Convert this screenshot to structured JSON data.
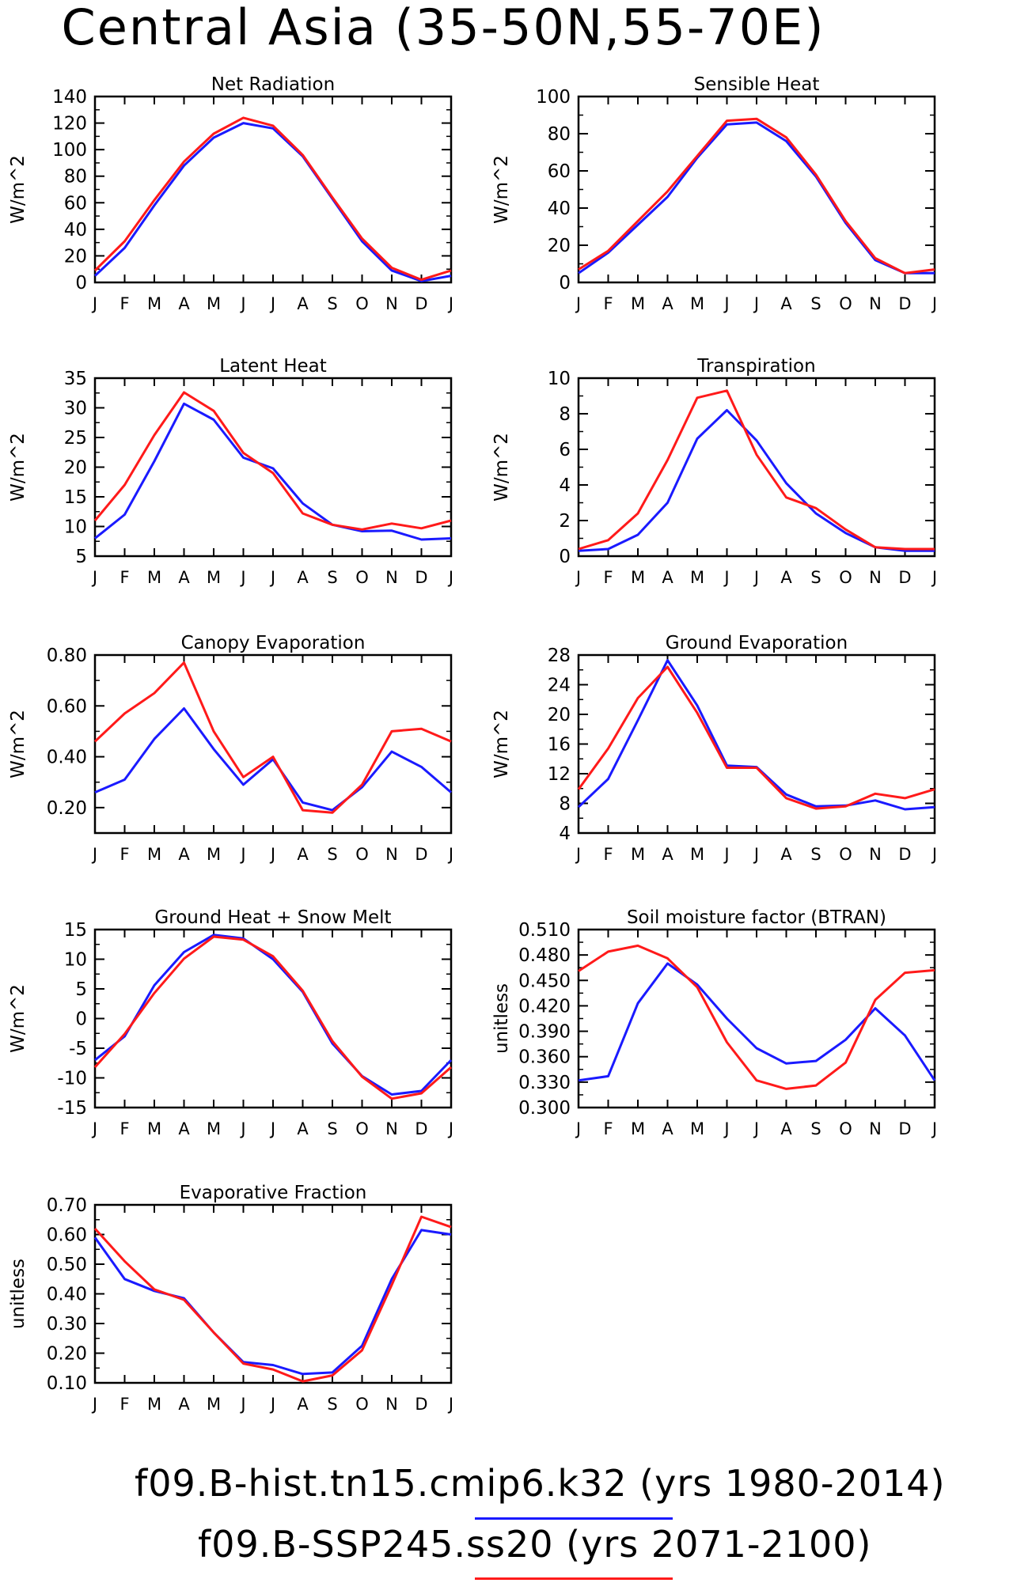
{
  "title": "Central Asia (35-50N,55-70E)",
  "colors": {
    "run1": "#1a1aff",
    "run2": "#ff1a1a"
  },
  "legend": [
    {
      "label": "f09.B-hist.tn15.cmip6.k32 (yrs 1980-2014)",
      "color": "#1a1aff"
    },
    {
      "label": "f09.B-SSP245.ss20 (yrs 2071-2100)",
      "color": "#ff1a1a"
    }
  ],
  "chart_data": [
    {
      "type": "line",
      "title": "Net Radiation",
      "ylabel": "W/m^2",
      "categories": [
        "J",
        "F",
        "M",
        "A",
        "M",
        "J",
        "J",
        "A",
        "S",
        "O",
        "N",
        "D",
        "J"
      ],
      "ylim": [
        0,
        140
      ],
      "yticks": [
        "0",
        "20",
        "40",
        "60",
        "80",
        "100",
        "120",
        "140"
      ],
      "series": [
        {
          "name": "f09.B-hist.tn15.cmip6.k32",
          "color": "#1a1aff",
          "values": [
            5,
            26,
            58,
            88,
            109,
            120,
            116,
            95,
            63,
            31,
            9,
            1,
            5
          ]
        },
        {
          "name": "f09.B-SSP245.ss20",
          "color": "#ff1a1a",
          "values": [
            9,
            31,
            62,
            91,
            112,
            124,
            118,
            96,
            64,
            33,
            11,
            2,
            9
          ]
        }
      ]
    },
    {
      "type": "line",
      "title": "Sensible Heat",
      "ylabel": "W/m^2",
      "categories": [
        "J",
        "F",
        "M",
        "A",
        "M",
        "J",
        "J",
        "A",
        "S",
        "O",
        "N",
        "D",
        "J"
      ],
      "ylim": [
        0,
        100
      ],
      "yticks": [
        "0",
        "20",
        "40",
        "60",
        "80",
        "100"
      ],
      "series": [
        {
          "name": "f09.B-hist.tn15.cmip6.k32",
          "color": "#1a1aff",
          "values": [
            5,
            16,
            31,
            46,
            67,
            85,
            86,
            76,
            57,
            32,
            12,
            5,
            5
          ]
        },
        {
          "name": "f09.B-SSP245.ss20",
          "color": "#ff1a1a",
          "values": [
            7,
            17,
            33,
            49,
            68,
            87,
            88,
            78,
            58,
            33,
            13,
            5,
            7
          ]
        }
      ]
    },
    {
      "type": "line",
      "title": "Latent Heat",
      "ylabel": "W/m^2",
      "categories": [
        "J",
        "F",
        "M",
        "A",
        "M",
        "J",
        "J",
        "A",
        "S",
        "O",
        "N",
        "D",
        "J"
      ],
      "ylim": [
        5,
        35
      ],
      "yticks": [
        "5",
        "10",
        "15",
        "20",
        "25",
        "30",
        "35"
      ],
      "series": [
        {
          "name": "f09.B-hist.tn15.cmip6.k32",
          "color": "#1a1aff",
          "values": [
            8,
            12,
            21,
            30.7,
            28,
            21.6,
            19.8,
            13.9,
            10.3,
            9.2,
            9.3,
            7.8,
            8
          ]
        },
        {
          "name": "f09.B-SSP245.ss20",
          "color": "#ff1a1a",
          "values": [
            11,
            17,
            25.4,
            32.6,
            29.5,
            22.4,
            19,
            12.2,
            10.3,
            9.5,
            10.5,
            9.7,
            11
          ]
        }
      ]
    },
    {
      "type": "line",
      "title": "Transpiration",
      "ylabel": "W/m^2",
      "categories": [
        "J",
        "F",
        "M",
        "A",
        "M",
        "J",
        "J",
        "A",
        "S",
        "O",
        "N",
        "D",
        "J"
      ],
      "ylim": [
        0,
        10
      ],
      "yticks": [
        "0",
        "2",
        "4",
        "6",
        "8",
        "10"
      ],
      "series": [
        {
          "name": "f09.B-hist.tn15.cmip6.k32",
          "color": "#1a1aff",
          "values": [
            0.3,
            0.4,
            1.2,
            3.0,
            6.6,
            8.2,
            6.5,
            4.1,
            2.4,
            1.3,
            0.5,
            0.3,
            0.3
          ]
        },
        {
          "name": "f09.B-SSP245.ss20",
          "color": "#ff1a1a",
          "values": [
            0.4,
            0.9,
            2.4,
            5.4,
            8.9,
            9.3,
            5.7,
            3.3,
            2.7,
            1.5,
            0.5,
            0.4,
            0.4
          ]
        }
      ]
    },
    {
      "type": "line",
      "title": "Canopy Evaporation",
      "ylabel": "W/m^2",
      "categories": [
        "J",
        "F",
        "M",
        "A",
        "M",
        "J",
        "J",
        "A",
        "S",
        "O",
        "N",
        "D",
        "J"
      ],
      "ylim": [
        0.1,
        0.8
      ],
      "yticks": [
        "0.20",
        "0.40",
        "0.60",
        "0.80"
      ],
      "yticks_values": [
        0.2,
        0.4,
        0.6,
        0.8
      ],
      "series": [
        {
          "name": "f09.B-hist.tn15.cmip6.k32",
          "color": "#1a1aff",
          "values": [
            0.26,
            0.31,
            0.47,
            0.59,
            0.43,
            0.29,
            0.39,
            0.22,
            0.19,
            0.28,
            0.42,
            0.36,
            0.26
          ]
        },
        {
          "name": "f09.B-SSP245.ss20",
          "color": "#ff1a1a",
          "values": [
            0.46,
            0.57,
            0.65,
            0.77,
            0.5,
            0.32,
            0.4,
            0.19,
            0.18,
            0.29,
            0.5,
            0.51,
            0.46
          ]
        }
      ]
    },
    {
      "type": "line",
      "title": "Ground Evaporation",
      "ylabel": "W/m^2",
      "categories": [
        "J",
        "F",
        "M",
        "A",
        "M",
        "J",
        "J",
        "A",
        "S",
        "O",
        "N",
        "D",
        "J"
      ],
      "ylim": [
        4,
        28
      ],
      "yticks": [
        "4",
        "8",
        "12",
        "16",
        "20",
        "24",
        "28"
      ],
      "series": [
        {
          "name": "f09.B-hist.tn15.cmip6.k32",
          "color": "#1a1aff",
          "values": [
            7.5,
            11.3,
            19.2,
            27.3,
            21.2,
            13.1,
            12.9,
            9.2,
            7.6,
            7.7,
            8.4,
            7.2,
            7.5
          ]
        },
        {
          "name": "f09.B-SSP245.ss20",
          "color": "#ff1a1a",
          "values": [
            9.9,
            15.4,
            22.2,
            26.4,
            20.2,
            12.8,
            12.8,
            8.7,
            7.3,
            7.6,
            9.3,
            8.7,
            9.9
          ]
        }
      ]
    },
    {
      "type": "line",
      "title": "Ground Heat + Snow Melt",
      "ylabel": "W/m^2",
      "categories": [
        "J",
        "F",
        "M",
        "A",
        "M",
        "J",
        "J",
        "A",
        "S",
        "O",
        "N",
        "D",
        "J"
      ],
      "ylim": [
        -15,
        15
      ],
      "yticks": [
        "-15",
        "-10",
        "-5",
        "0",
        "5",
        "10",
        "15"
      ],
      "series": [
        {
          "name": "f09.B-hist.tn15.cmip6.k32",
          "color": "#1a1aff",
          "values": [
            -7,
            -3,
            5.6,
            11.2,
            14.1,
            13.5,
            10,
            4.5,
            -4.2,
            -9.7,
            -12.8,
            -12.2,
            -7
          ]
        },
        {
          "name": "f09.B-SSP245.ss20",
          "color": "#ff1a1a",
          "values": [
            -8.2,
            -2.6,
            4.3,
            10.1,
            13.8,
            13.3,
            10.5,
            4.7,
            -3.8,
            -9.8,
            -13.5,
            -12.6,
            -8.2
          ]
        }
      ]
    },
    {
      "type": "line",
      "title": "Soil moisture factor (BTRAN)",
      "ylabel": "unitless",
      "categories": [
        "J",
        "F",
        "M",
        "A",
        "M",
        "J",
        "J",
        "A",
        "S",
        "O",
        "N",
        "D",
        "J"
      ],
      "ylim": [
        0.3,
        0.51
      ],
      "yticks": [
        "0.300",
        "0.330",
        "0.360",
        "0.390",
        "0.420",
        "0.450",
        "0.480",
        "0.510"
      ],
      "series": [
        {
          "name": "f09.B-hist.tn15.cmip6.k32",
          "color": "#1a1aff",
          "values": [
            0.332,
            0.337,
            0.423,
            0.47,
            0.445,
            0.405,
            0.37,
            0.352,
            0.355,
            0.38,
            0.417,
            0.385,
            0.332
          ]
        },
        {
          "name": "f09.B-SSP245.ss20",
          "color": "#ff1a1a",
          "values": [
            0.461,
            0.484,
            0.491,
            0.476,
            0.442,
            0.377,
            0.332,
            0.322,
            0.326,
            0.353,
            0.427,
            0.459,
            0.462
          ]
        }
      ]
    },
    {
      "type": "line",
      "title": "Evaporative Fraction",
      "ylabel": "unitless",
      "categories": [
        "J",
        "F",
        "M",
        "A",
        "M",
        "J",
        "J",
        "A",
        "S",
        "O",
        "N",
        "D",
        "J"
      ],
      "ylim": [
        0.1,
        0.7
      ],
      "yticks": [
        "0.10",
        "0.20",
        "0.30",
        "0.40",
        "0.50",
        "0.60",
        "0.70"
      ],
      "series": [
        {
          "name": "f09.B-hist.tn15.cmip6.k32",
          "color": "#1a1aff",
          "values": [
            0.59,
            0.45,
            0.41,
            0.385,
            0.27,
            0.17,
            0.16,
            0.13,
            0.135,
            0.225,
            0.45,
            0.615,
            0.6
          ]
        },
        {
          "name": "f09.B-SSP245.ss20",
          "color": "#ff1a1a",
          "values": [
            0.62,
            0.51,
            0.415,
            0.38,
            0.27,
            0.165,
            0.145,
            0.105,
            0.125,
            0.21,
            0.43,
            0.66,
            0.625
          ]
        }
      ]
    }
  ]
}
